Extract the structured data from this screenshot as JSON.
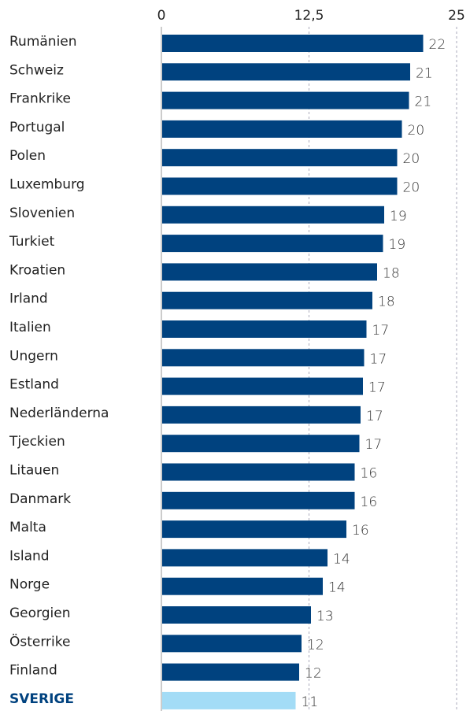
{
  "chart_data": {
    "type": "barh",
    "categories": [
      "Rumänien",
      "Schweiz",
      "Frankrike",
      "Portugal",
      "Polen",
      "Luxemburg",
      "Slovenien",
      "Turkiet",
      "Kroatien",
      "Irland",
      "Italien",
      "Ungern",
      "Estland",
      "Nederländerna",
      "Tjeckien",
      "Litauen",
      "Danmark",
      "Malta",
      "Island",
      "Norge",
      "Georgien",
      "Österrike",
      "Finland",
      "SVERIGE"
    ],
    "values": [
      22.1,
      21.0,
      20.9,
      20.3,
      19.9,
      19.9,
      18.8,
      18.7,
      18.2,
      17.8,
      17.3,
      17.1,
      17.0,
      16.8,
      16.7,
      16.3,
      16.3,
      15.6,
      14.0,
      13.6,
      12.6,
      11.8,
      11.6,
      11.3
    ],
    "value_labels": [
      "22",
      "21",
      "21",
      "20",
      "20",
      "20",
      "19",
      "19",
      "18",
      "18",
      "17",
      "17",
      "17",
      "17",
      "17",
      "16",
      "16",
      "16",
      "14",
      "14",
      "13",
      "12",
      "12",
      "11"
    ],
    "colors": [
      "#00427f",
      "#00427f",
      "#00427f",
      "#00427f",
      "#00427f",
      "#00427f",
      "#00427f",
      "#00427f",
      "#00427f",
      "#00427f",
      "#00427f",
      "#00427f",
      "#00427f",
      "#00427f",
      "#00427f",
      "#00427f",
      "#00427f",
      "#00427f",
      "#00427f",
      "#00427f",
      "#00427f",
      "#00427f",
      "#00427f",
      "#a3dcf6"
    ],
    "xlim": [
      0,
      25
    ],
    "xticks": [
      0,
      {
        "value": 12.5,
        "label": "12,5"
      },
      25
    ],
    "grid": true
  }
}
